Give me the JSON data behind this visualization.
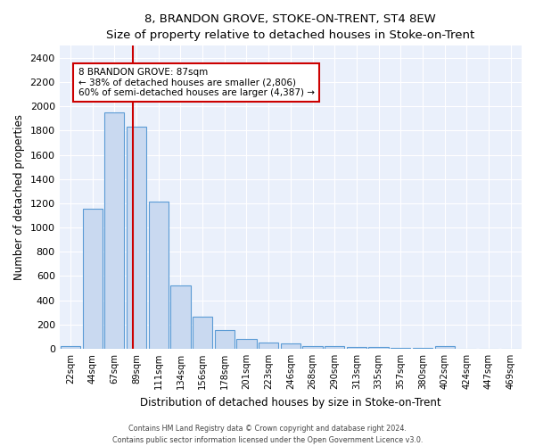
{
  "title": "8, BRANDON GROVE, STOKE-ON-TRENT, ST4 8EW",
  "subtitle": "Size of property relative to detached houses in Stoke-on-Trent",
  "xlabel": "Distribution of detached houses by size in Stoke-on-Trent",
  "ylabel": "Number of detached properties",
  "bar_labels": [
    "22sqm",
    "44sqm",
    "67sqm",
    "89sqm",
    "111sqm",
    "134sqm",
    "156sqm",
    "178sqm",
    "201sqm",
    "223sqm",
    "246sqm",
    "268sqm",
    "290sqm",
    "313sqm",
    "335sqm",
    "357sqm",
    "380sqm",
    "402sqm",
    "424sqm",
    "447sqm",
    "469sqm"
  ],
  "bar_values": [
    25,
    1155,
    1950,
    1835,
    1215,
    520,
    265,
    155,
    80,
    50,
    40,
    25,
    18,
    15,
    15,
    5,
    5,
    22,
    2,
    2,
    2
  ],
  "bar_color": "#c9d9f0",
  "bar_edge_color": "#5b9bd5",
  "vline_x": 3.5,
  "vline_color": "#cc0000",
  "annotation_text": "8 BRANDON GROVE: 87sqm\n← 38% of detached houses are smaller (2,806)\n60% of semi-detached houses are larger (4,387) →",
  "ylim": [
    0,
    2500
  ],
  "yticks": [
    0,
    200,
    400,
    600,
    800,
    1000,
    1200,
    1400,
    1600,
    1800,
    2000,
    2200,
    2400
  ],
  "bg_color": "#eaf0fb",
  "grid_color": "#ffffff",
  "footer1": "Contains HM Land Registry data © Crown copyright and database right 2024.",
  "footer2": "Contains public sector information licensed under the Open Government Licence v3.0."
}
